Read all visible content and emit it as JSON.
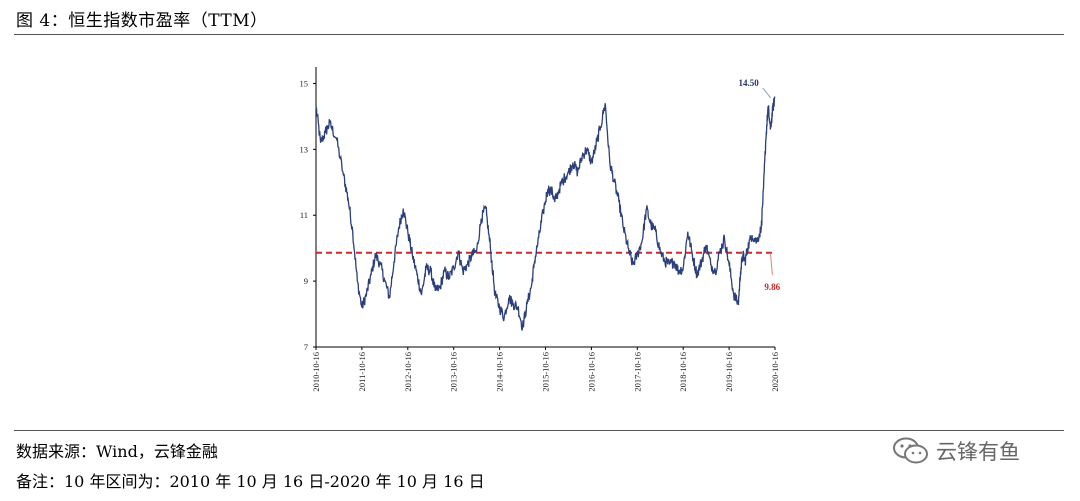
{
  "header": {
    "title": "图 4：恒生指数市盈率（TTM）"
  },
  "footer": {
    "source": "数据来源：Wind，云锋金融",
    "note": "备注：10 年区间为：2010 年 10 月 16 日-2020 年 10 月 16 日"
  },
  "watermark": {
    "text": "云锋有鱼",
    "icon": "wechat-icon"
  },
  "chart_data": {
    "type": "line",
    "title": "",
    "xlabel": "",
    "ylabel": "",
    "ylim": [
      7,
      15.5
    ],
    "yticks": [
      7,
      9,
      11,
      13,
      15
    ],
    "x_tick_labels": [
      "2010-10-16",
      "2011-10-16",
      "2012-10-16",
      "2013-10-16",
      "2014-10-16",
      "2015-10-16",
      "2016-10-16",
      "2017-10-16",
      "2018-10-16",
      "2019-10-16",
      "2020-10-16"
    ],
    "series": [
      {
        "name": "恒生指数市盈率（TTM）",
        "color": "#2b3f7a",
        "x": [
          0,
          0.1,
          0.2,
          0.3,
          0.45,
          0.6,
          0.7,
          0.8,
          0.9,
          1.0,
          1.1,
          1.2,
          1.3,
          1.4,
          1.5,
          1.6,
          1.7,
          1.8,
          1.9,
          2.0,
          2.1,
          2.2,
          2.3,
          2.4,
          2.5,
          2.6,
          2.7,
          2.8,
          2.9,
          3.0,
          3.1,
          3.2,
          3.3,
          3.4,
          3.5,
          3.6,
          3.7,
          3.8,
          3.9,
          4.0,
          4.1,
          4.2,
          4.3,
          4.4,
          4.5,
          4.6,
          4.7,
          4.75,
          4.85,
          4.95,
          5.05,
          5.15,
          5.2,
          5.3,
          5.4,
          5.5,
          5.6,
          5.7,
          5.8,
          5.9,
          6.0,
          6.1,
          6.2,
          6.3,
          6.4,
          6.5,
          6.6,
          6.7,
          6.8,
          6.9,
          7.0,
          7.1,
          7.2,
          7.3,
          7.4,
          7.5,
          7.6,
          7.7,
          7.8,
          7.9,
          8.0,
          8.1,
          8.2,
          8.3,
          8.4,
          8.5,
          8.6,
          8.7,
          8.8,
          8.9,
          9.0,
          9.1,
          9.2,
          9.25,
          9.3,
          9.35,
          9.4,
          9.5,
          9.6,
          9.7,
          9.75,
          9.8,
          9.85,
          9.9,
          9.95,
          10.0
        ],
        "values": [
          14.3,
          13.2,
          13.5,
          13.8,
          13.3,
          12.2,
          11.5,
          10.5,
          9.0,
          8.2,
          8.6,
          9.2,
          9.8,
          9.5,
          9.0,
          8.5,
          9.6,
          10.6,
          11.2,
          10.5,
          9.8,
          9.2,
          8.6,
          9.4,
          9.3,
          8.7,
          8.8,
          9.3,
          9.1,
          9.4,
          9.9,
          9.3,
          9.5,
          9.8,
          9.9,
          10.9,
          11.2,
          10.0,
          8.6,
          8.2,
          7.9,
          8.5,
          8.3,
          8.2,
          7.6,
          8.3,
          8.9,
          9.5,
          10.3,
          11.1,
          11.8,
          11.7,
          11.4,
          11.8,
          12.1,
          12.3,
          12.6,
          12.3,
          12.8,
          13.0,
          12.6,
          13.1,
          13.7,
          14.4,
          12.6,
          12.0,
          11.4,
          10.6,
          10.0,
          9.5,
          9.8,
          10.2,
          11.2,
          10.7,
          10.5,
          9.9,
          9.6,
          9.5,
          9.6,
          9.3,
          9.4,
          10.5,
          9.8,
          9.2,
          9.6,
          10.1,
          9.5,
          9.3,
          9.9,
          10.3,
          9.5,
          8.6,
          8.3,
          9.3,
          9.8,
          9.6,
          10.0,
          10.4,
          10.2,
          10.6,
          11.8,
          13.3,
          14.3,
          13.6,
          14.2,
          14.6
        ]
      }
    ],
    "reference_line": {
      "value": 9.86,
      "label": "9.86",
      "color": "#cc2a2a",
      "style": "dashed"
    },
    "annotations": [
      {
        "label": "14.50",
        "x": 9.95,
        "y": 14.5,
        "color": "#1f3468"
      },
      {
        "label": "9.86",
        "x": 9.9,
        "y": 9.86,
        "color": "#cc2a2a"
      }
    ],
    "legend": "none",
    "grid": false
  }
}
